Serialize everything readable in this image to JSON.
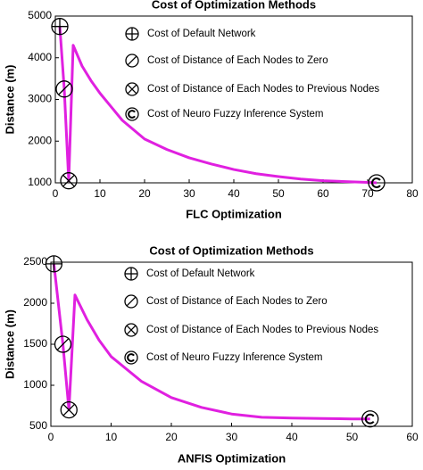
{
  "chart_data": [
    {
      "type": "line",
      "title": "Cost of Optimization Methods",
      "xlabel": "FLC Optimization",
      "ylabel": "Distance (m)",
      "xlim": [
        0,
        80
      ],
      "ylim": [
        1000,
        5000
      ],
      "xticks": [
        0,
        10,
        20,
        30,
        40,
        50,
        60,
        70,
        80
      ],
      "yticks": [
        1000,
        2000,
        3000,
        4000,
        5000
      ],
      "series": [
        {
          "color": "#e020e0",
          "x": [
            1,
            2,
            3,
            4,
            6,
            8,
            10,
            15,
            20,
            25,
            30,
            35,
            40,
            45,
            50,
            55,
            60,
            65,
            70,
            72
          ],
          "values": [
            4750,
            3250,
            1050,
            4300,
            3800,
            3450,
            3150,
            2500,
            2050,
            1800,
            1600,
            1450,
            1320,
            1220,
            1150,
            1090,
            1050,
            1030,
            1010,
            1000
          ]
        }
      ],
      "markers": [
        {
          "name": "Cost of Default Network",
          "marker": "plus-circle",
          "x": 1,
          "y": 4750
        },
        {
          "name": "Cost of Distance of Each Nodes to Zero",
          "marker": "slash-circle",
          "x": 2,
          "y": 3250
        },
        {
          "name": "Cost of Distance of Each Nodes to Previous Nodes",
          "marker": "x-circle",
          "x": 3,
          "y": 1050
        },
        {
          "name": "Cost of Neuro Fuzzy Inference System",
          "marker": "c-circle",
          "x": 72,
          "y": 1000
        }
      ]
    },
    {
      "type": "line",
      "title": "Cost of Optimization Methods",
      "xlabel": "ANFIS Optimization",
      "ylabel": "Distance (m)",
      "xlim": [
        0,
        60
      ],
      "ylim": [
        500,
        2500
      ],
      "xticks": [
        0,
        10,
        20,
        30,
        40,
        50,
        60
      ],
      "yticks": [
        500,
        1000,
        1500,
        2000,
        2500
      ],
      "series": [
        {
          "color": "#e020e0",
          "x": [
            0.5,
            2,
            3,
            4,
            6,
            8,
            10,
            15,
            20,
            25,
            30,
            35,
            40,
            45,
            50,
            53
          ],
          "values": [
            2480,
            1500,
            700,
            2100,
            1800,
            1550,
            1350,
            1050,
            850,
            730,
            650,
            610,
            600,
            595,
            590,
            590
          ]
        }
      ],
      "markers": [
        {
          "name": "Cost of Default Network",
          "marker": "plus-circle",
          "x": 0.5,
          "y": 2480
        },
        {
          "name": "Cost of Distance of Each Nodes to Zero",
          "marker": "slash-circle",
          "x": 2,
          "y": 1500
        },
        {
          "name": "Cost of Distance of Each Nodes to Previous Nodes",
          "marker": "x-circle",
          "x": 3,
          "y": 700
        },
        {
          "name": "Cost of Neuro Fuzzy Inference System",
          "marker": "c-circle",
          "x": 53,
          "y": 590
        }
      ]
    }
  ]
}
